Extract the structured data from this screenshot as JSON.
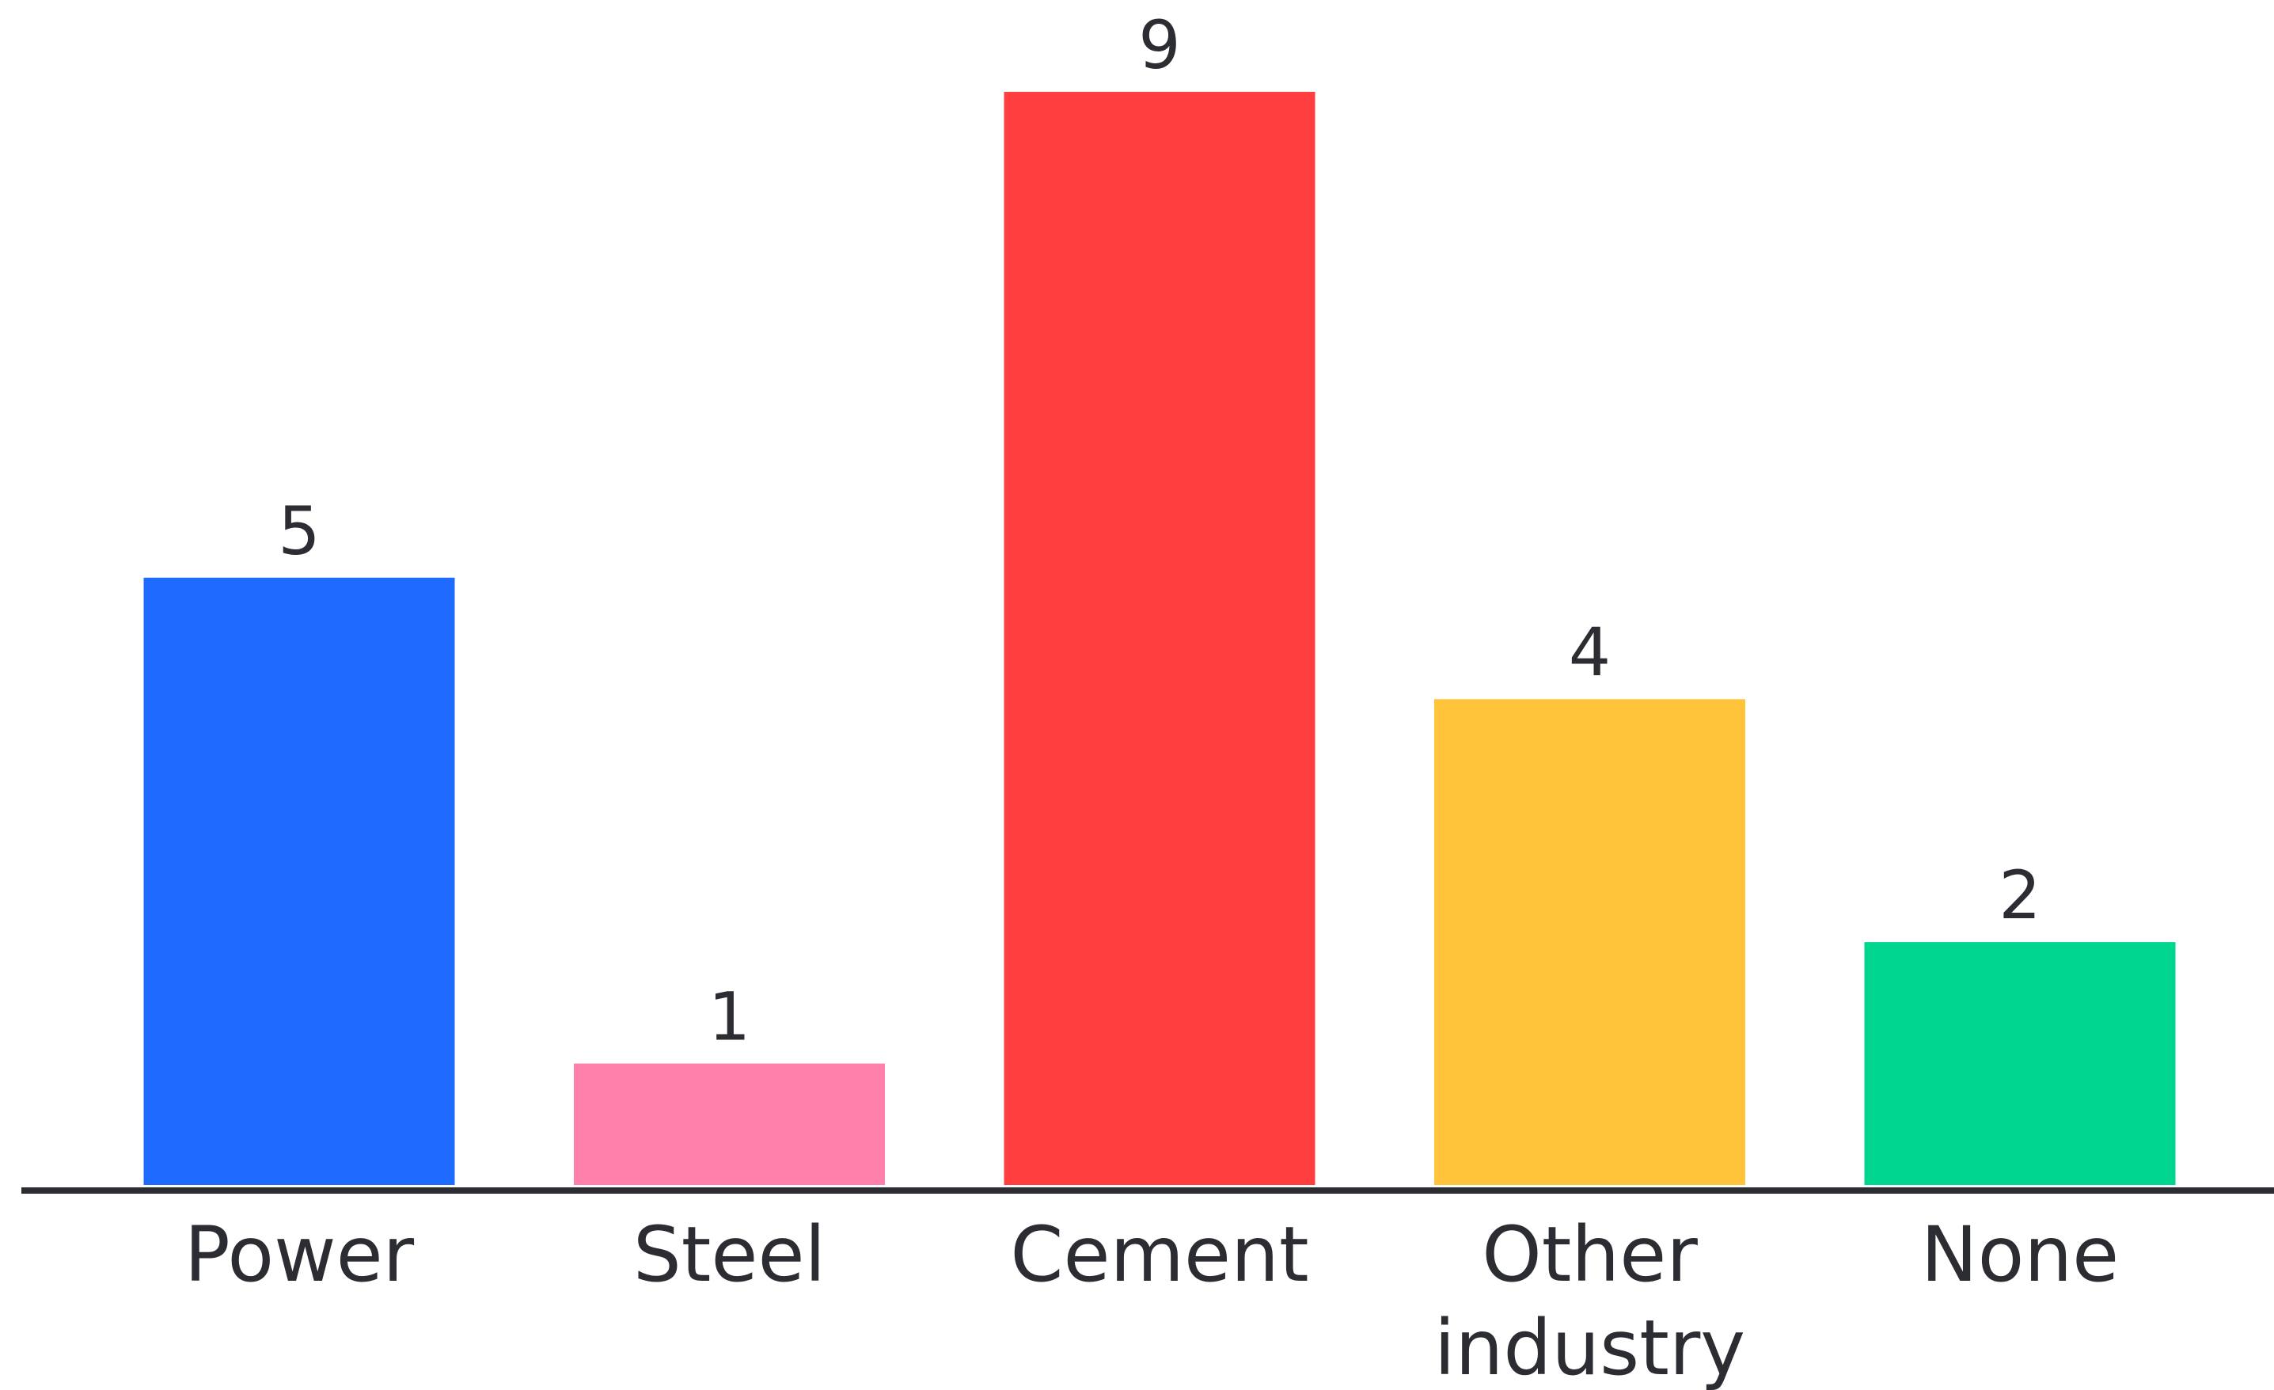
{
  "chart_data": {
    "type": "bar",
    "categories": [
      "Power",
      "Steel",
      "Cement",
      "Other industry",
      "None"
    ],
    "category_lines": [
      [
        "Power"
      ],
      [
        "Steel"
      ],
      [
        "Cement"
      ],
      [
        "Other",
        "industry"
      ],
      [
        "None"
      ]
    ],
    "values": [
      5,
      1,
      9,
      4,
      2
    ],
    "colors": [
      "#1f6bff",
      "#ff80ab",
      "#ff3f3f",
      "#ffc43a",
      "#00d68f"
    ],
    "title": "",
    "xlabel": "",
    "ylabel": "",
    "ylim": [
      0,
      9
    ],
    "grid": false,
    "legend": "none",
    "data_labels": true
  }
}
